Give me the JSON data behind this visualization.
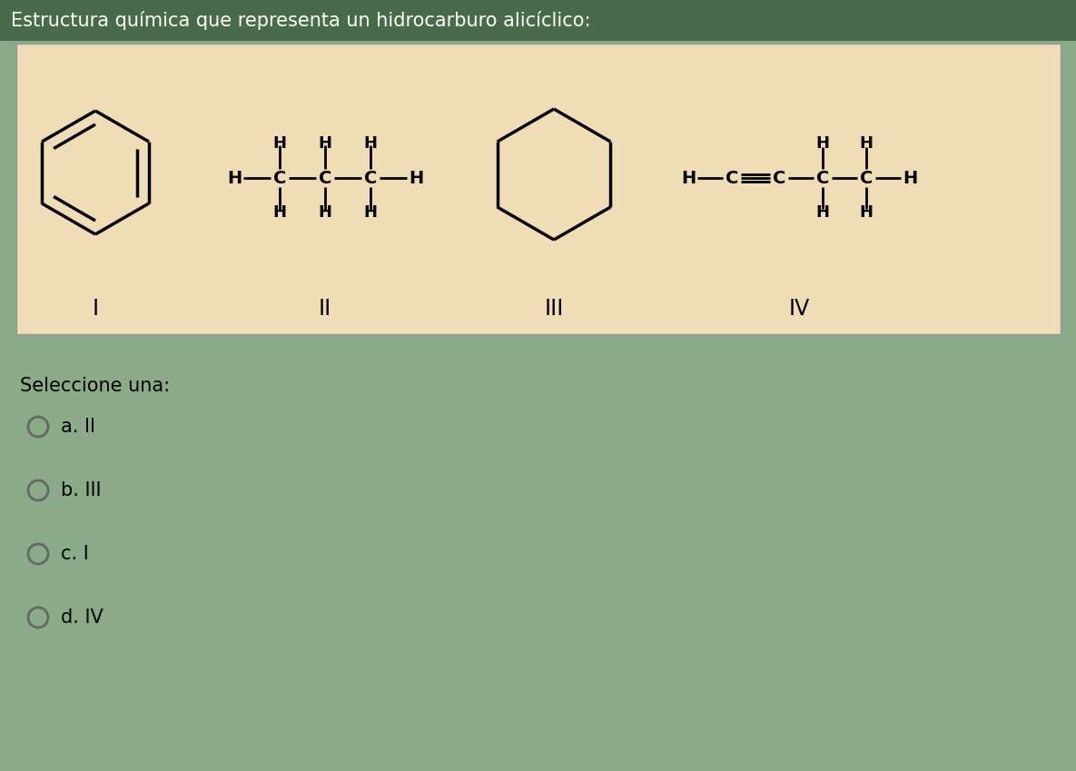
{
  "title": "Estructura química que representa un hidrocarburo alicíclico:",
  "title_color": "#ffffff",
  "title_bg": "#4a6b4a",
  "panel_bg": "#f0ddb8",
  "page_bg": "#8aaa88",
  "question_options": [
    {
      "label": "a. II"
    },
    {
      "label": "b. III"
    },
    {
      "label": "c. I"
    },
    {
      "label": "d. IV"
    }
  ],
  "seleccione_text": "Seleccione una:",
  "structure_labels": [
    "I",
    "II",
    "III",
    "IV"
  ],
  "fig_width": 11.85,
  "fig_height": 8.49,
  "dpi": 100
}
